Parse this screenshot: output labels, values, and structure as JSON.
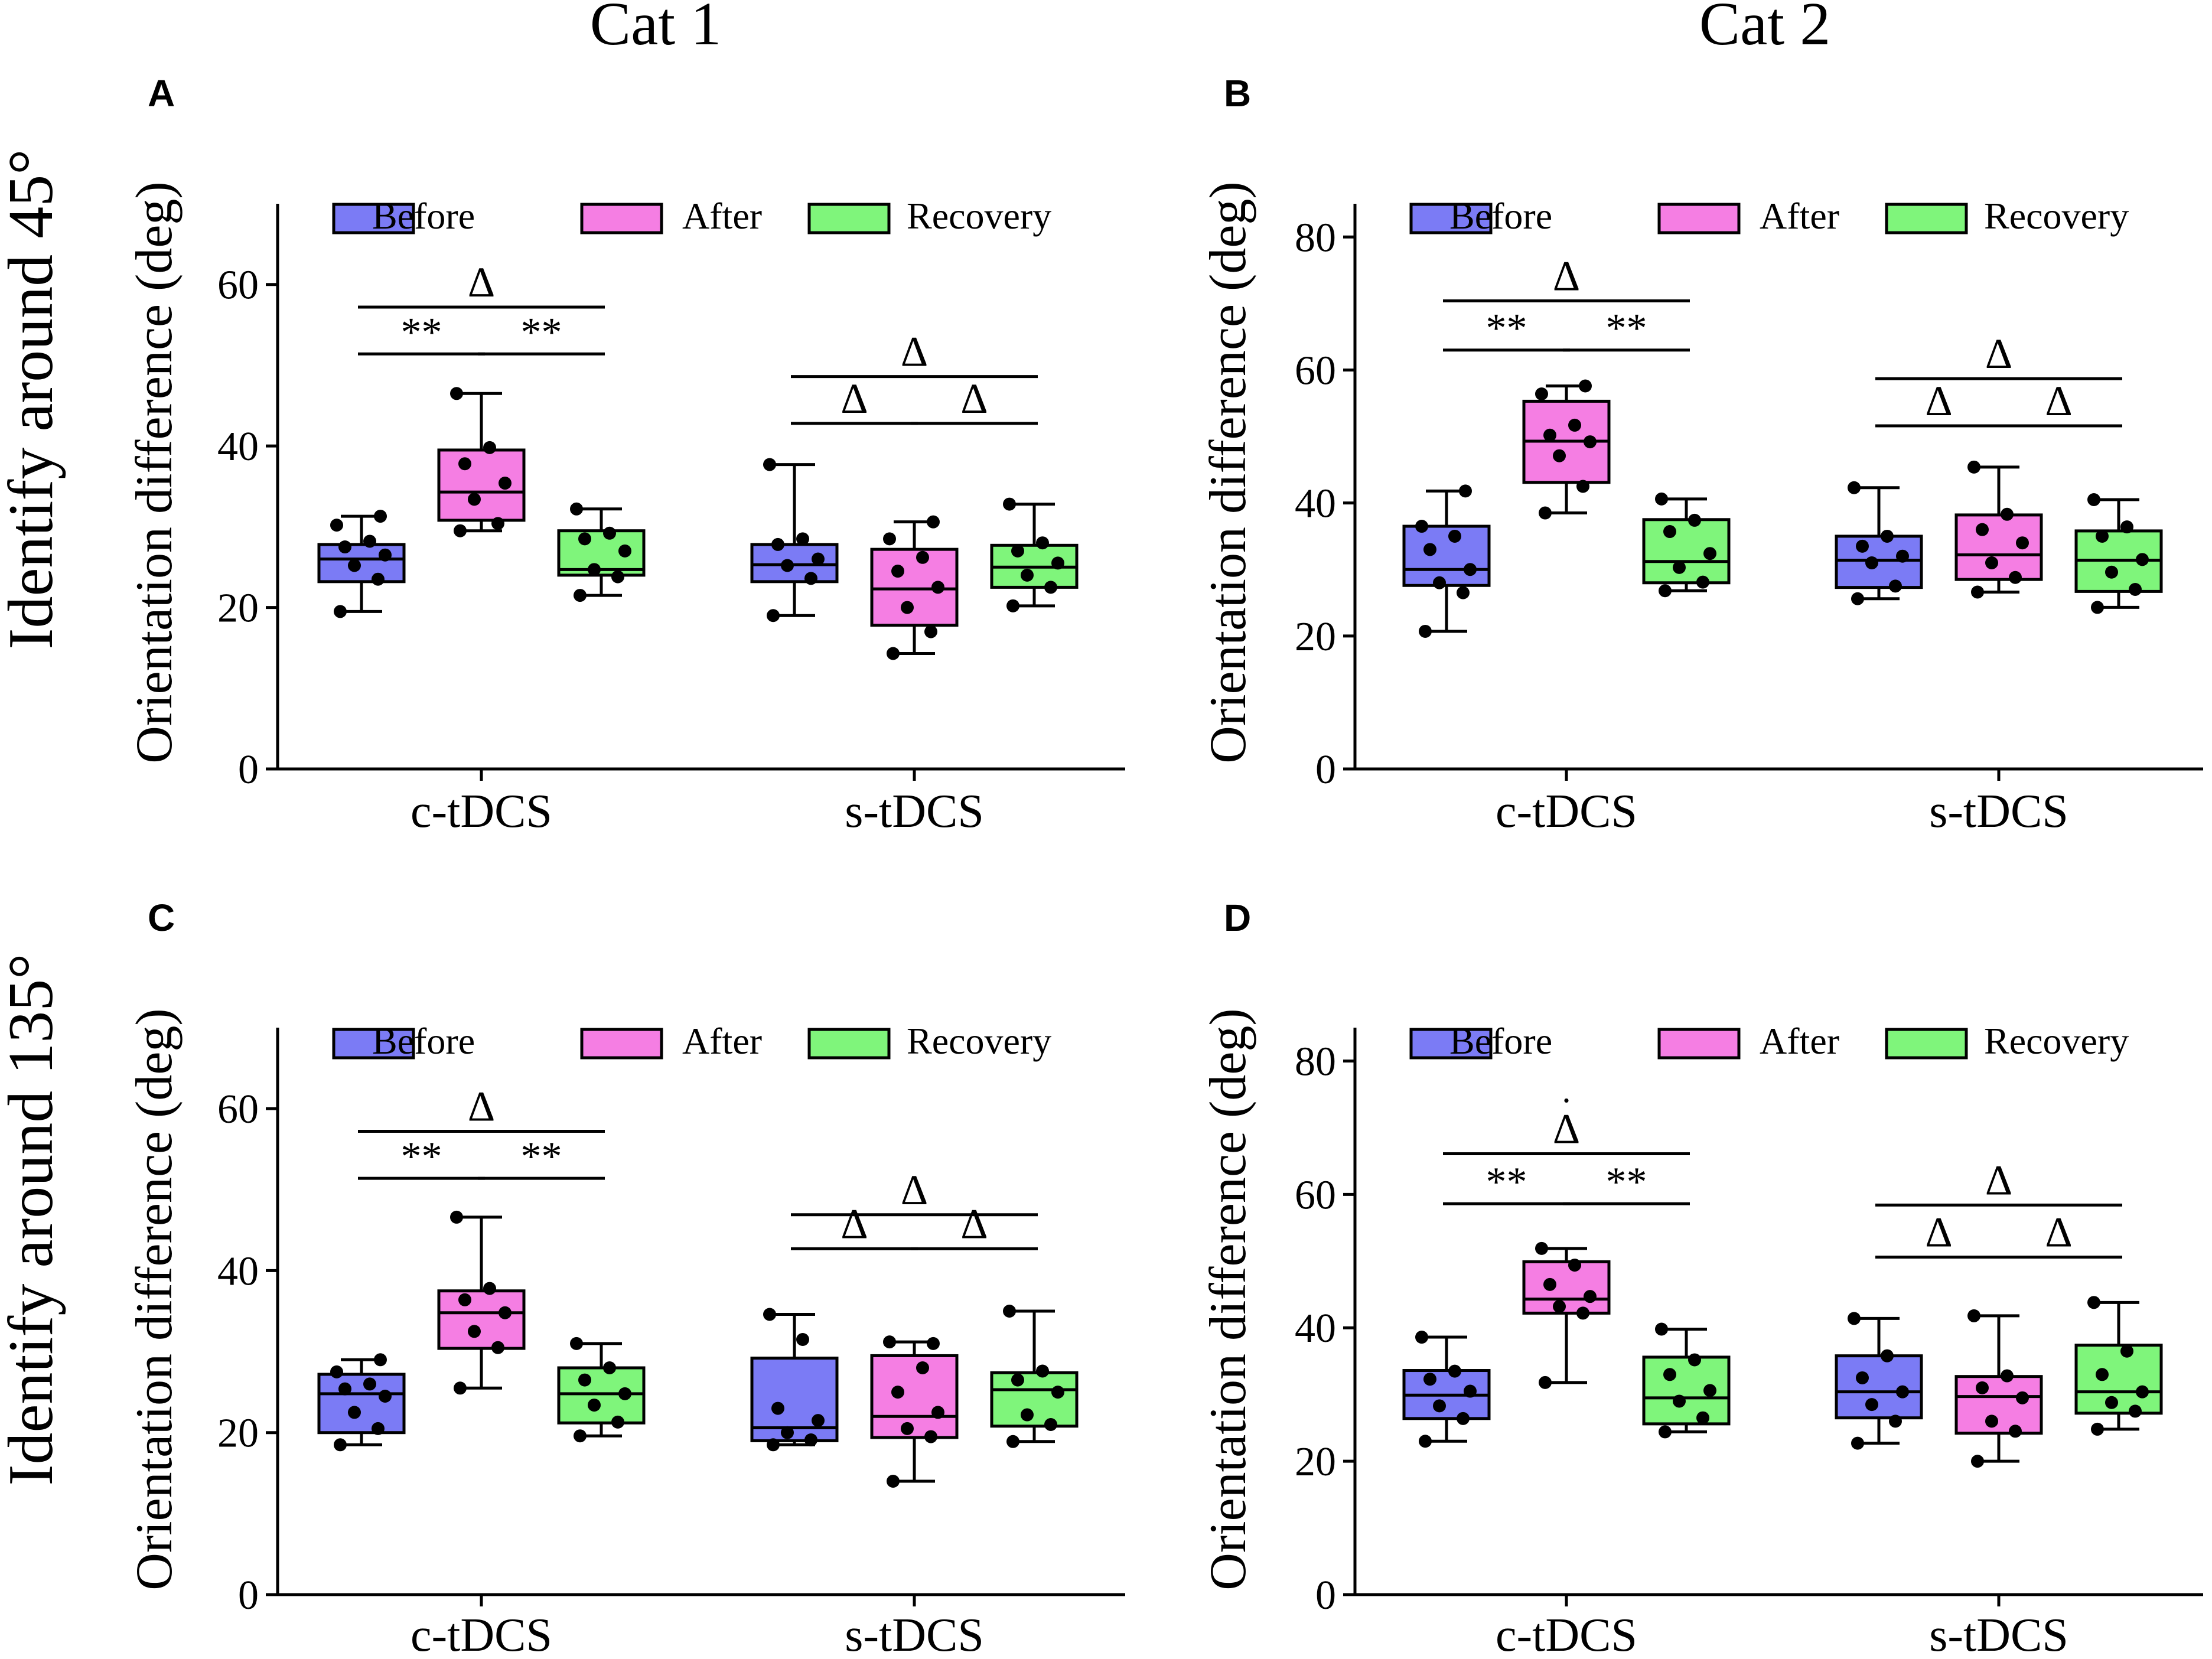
{
  "column_titles": [
    "Cat 1",
    "Cat 2"
  ],
  "row_titles": [
    "Identify around 45°",
    "Identify around 135°"
  ],
  "legend": [
    {
      "name": "Before",
      "color": "#7b7bf5"
    },
    {
      "name": "After",
      "color": "#f57ee3"
    },
    {
      "name": "Recovery",
      "color": "#7ff57b"
    }
  ],
  "significance_labels": {
    "double_star": "**",
    "delta": "Δ",
    "dot": "·"
  },
  "chart_data": [
    {
      "panel": "A",
      "type": "box",
      "ylabel": "Orientation difference (deg)",
      "ylim": [
        0,
        70
      ],
      "yticks": [
        0,
        20,
        40,
        60
      ],
      "yticklabels": [
        "0",
        "20",
        "40",
        "60"
      ],
      "categories": [
        "c-tDCS",
        "s-tDCS"
      ],
      "series": [
        "Before",
        "After",
        "Recovery"
      ],
      "boxes": [
        {
          "category": "c-tDCS",
          "series": "Before",
          "min": 19.5,
          "q1": 23.2,
          "median": 26,
          "q3": 27.8,
          "max": 31.3,
          "points": [
            19.5,
            23.5,
            25.2,
            26.5,
            27.5,
            28.2,
            30.2,
            31.3
          ]
        },
        {
          "category": "c-tDCS",
          "series": "After",
          "min": 29.5,
          "q1": 30.8,
          "median": 34.3,
          "q3": 39.5,
          "max": 46.5,
          "points": [
            29.5,
            30.4,
            33.4,
            35.4,
            37.8,
            39.8,
            46.5
          ]
        },
        {
          "category": "c-tDCS",
          "series": "Recovery",
          "min": 21.5,
          "q1": 24,
          "median": 24.7,
          "q3": 29.5,
          "max": 32.2,
          "points": [
            21.5,
            23.8,
            24.7,
            27,
            28.5,
            29.2,
            32.2
          ]
        },
        {
          "category": "s-tDCS",
          "series": "Before",
          "min": 19,
          "q1": 23.2,
          "median": 25.3,
          "q3": 27.8,
          "max": 37.7,
          "points": [
            19,
            23.6,
            25.2,
            26,
            27.8,
            28.5,
            37.7
          ]
        },
        {
          "category": "s-tDCS",
          "series": "After",
          "min": 14.3,
          "q1": 17.8,
          "median": 22.3,
          "q3": 27.2,
          "max": 30.6,
          "points": [
            14.3,
            17,
            20,
            22.5,
            24.5,
            26.2,
            28.5,
            30.6
          ]
        },
        {
          "category": "s-tDCS",
          "series": "Recovery",
          "min": 20.2,
          "q1": 22.5,
          "median": 25,
          "q3": 27.7,
          "max": 32.8,
          "points": [
            20.2,
            22.5,
            24,
            25.5,
            27,
            28,
            32.8
          ]
        }
      ],
      "brackets": [
        {
          "category": "c-tDCS",
          "from": "Before",
          "to": "After",
          "label": "**",
          "level": 51.4
        },
        {
          "category": "c-tDCS",
          "from": "After",
          "to": "Recovery",
          "label": "**",
          "level": 51.4
        },
        {
          "category": "c-tDCS",
          "from": "Before",
          "to": "Recovery",
          "label": "Δ",
          "level": 57.2
        },
        {
          "category": "s-tDCS",
          "from": "Before",
          "to": "After",
          "label": "Δ",
          "level": 42.8
        },
        {
          "category": "s-tDCS",
          "from": "After",
          "to": "Recovery",
          "label": "Δ",
          "level": 42.8
        },
        {
          "category": "s-tDCS",
          "from": "Before",
          "to": "Recovery",
          "label": "Δ",
          "level": 48.6
        }
      ]
    },
    {
      "panel": "B",
      "type": "box",
      "ylabel": "Orientation difference (deg)",
      "ylim": [
        0,
        85
      ],
      "yticks": [
        0,
        20,
        40,
        60,
        80
      ],
      "yticklabels": [
        "0",
        "20",
        "40",
        "60",
        "80"
      ],
      "categories": [
        "c-tDCS",
        "s-tDCS"
      ],
      "series": [
        "Before",
        "After",
        "Recovery"
      ],
      "boxes": [
        {
          "category": "c-tDCS",
          "series": "Before",
          "min": 20.7,
          "q1": 27.6,
          "median": 30,
          "q3": 36.5,
          "max": 41.8,
          "points": [
            20.7,
            26.5,
            28,
            30,
            33,
            35,
            36.5,
            41.8
          ]
        },
        {
          "category": "c-tDCS",
          "series": "After",
          "min": 38.5,
          "q1": 43.1,
          "median": 49.3,
          "q3": 55.3,
          "max": 57.6,
          "points": [
            38.5,
            42.5,
            47.1,
            49.2,
            50.2,
            51.7,
            56.4,
            57.6
          ]
        },
        {
          "category": "c-tDCS",
          "series": "Recovery",
          "min": 26.8,
          "q1": 28,
          "median": 31.2,
          "q3": 37.5,
          "max": 40.6,
          "points": [
            26.8,
            28.1,
            30.3,
            32.4,
            35.7,
            37.4,
            40.6
          ]
        },
        {
          "category": "s-tDCS",
          "series": "Before",
          "min": 25.6,
          "q1": 27.3,
          "median": 31.4,
          "q3": 35,
          "max": 42.3,
          "points": [
            25.6,
            27.5,
            31,
            32,
            33.5,
            35,
            42.3
          ]
        },
        {
          "category": "s-tDCS",
          "series": "After",
          "min": 26.6,
          "q1": 28.5,
          "median": 32.2,
          "q3": 38.2,
          "max": 45.4,
          "points": [
            26.6,
            28.8,
            31,
            34,
            36,
            38.3,
            45.4
          ]
        },
        {
          "category": "s-tDCS",
          "series": "Recovery",
          "min": 24.3,
          "q1": 26.7,
          "median": 31.4,
          "q3": 35.8,
          "max": 40.5,
          "points": [
            24.3,
            27,
            29.6,
            31.5,
            35,
            36.4,
            40.5
          ]
        }
      ],
      "brackets": [
        {
          "category": "c-tDCS",
          "from": "Before",
          "to": "After",
          "label": "**",
          "level": 63
        },
        {
          "category": "c-tDCS",
          "from": "After",
          "to": "Recovery",
          "label": "**",
          "level": 63
        },
        {
          "category": "c-tDCS",
          "from": "Before",
          "to": "Recovery",
          "label": "Δ",
          "level": 70.4
        },
        {
          "category": "s-tDCS",
          "from": "Before",
          "to": "After",
          "label": "Δ",
          "level": 51.6
        },
        {
          "category": "s-tDCS",
          "from": "After",
          "to": "Recovery",
          "label": "Δ",
          "level": 51.6
        },
        {
          "category": "s-tDCS",
          "from": "Before",
          "to": "Recovery",
          "label": "Δ",
          "level": 58.7
        }
      ]
    },
    {
      "panel": "C",
      "type": "box",
      "ylabel": "Orientation difference (deg)",
      "ylim": [
        0,
        70
      ],
      "yticks": [
        0,
        20,
        40,
        60
      ],
      "yticklabels": [
        "0",
        "20",
        "40",
        "60"
      ],
      "categories": [
        "c-tDCS",
        "s-tDCS"
      ],
      "series": [
        "Before",
        "After",
        "Recovery"
      ],
      "boxes": [
        {
          "category": "c-tDCS",
          "series": "Before",
          "min": 18.5,
          "q1": 20,
          "median": 24.8,
          "q3": 27.2,
          "max": 29,
          "points": [
            18.5,
            20.5,
            22.5,
            24.5,
            25.4,
            26,
            27.5,
            29
          ]
        },
        {
          "category": "c-tDCS",
          "series": "After",
          "min": 25.5,
          "q1": 30.4,
          "median": 34.8,
          "q3": 37.5,
          "max": 46.6,
          "points": [
            25.5,
            30.5,
            32.5,
            34.8,
            36.4,
            37.8,
            46.6
          ]
        },
        {
          "category": "c-tDCS",
          "series": "Recovery",
          "min": 19.6,
          "q1": 21.2,
          "median": 24.8,
          "q3": 28,
          "max": 31,
          "points": [
            19.6,
            21.3,
            23.4,
            24.8,
            26.5,
            28,
            31
          ]
        },
        {
          "category": "s-tDCS",
          "series": "Before",
          "min": 18.5,
          "q1": 19,
          "median": 20.6,
          "q3": 29.2,
          "max": 34.6,
          "points": [
            18.5,
            19.1,
            20,
            21.5,
            23,
            31.5,
            34.6
          ]
        },
        {
          "category": "s-tDCS",
          "series": "After",
          "min": 14,
          "q1": 19.4,
          "median": 22,
          "q3": 29.5,
          "max": 31.2,
          "points": [
            14,
            19.5,
            20.5,
            22.5,
            25,
            28,
            31.2,
            31
          ]
        },
        {
          "category": "s-tDCS",
          "series": "Recovery",
          "min": 18.9,
          "q1": 20.8,
          "median": 25.3,
          "q3": 27.4,
          "max": 35,
          "points": [
            18.9,
            21,
            22.2,
            25,
            26.5,
            27.6,
            35
          ]
        }
      ],
      "brackets": [
        {
          "category": "c-tDCS",
          "from": "Before",
          "to": "After",
          "label": "**",
          "level": 51.4
        },
        {
          "category": "c-tDCS",
          "from": "After",
          "to": "Recovery",
          "label": "**",
          "level": 51.4
        },
        {
          "category": "c-tDCS",
          "from": "Before",
          "to": "Recovery",
          "label": "Δ",
          "level": 57.2
        },
        {
          "category": "s-tDCS",
          "from": "Before",
          "to": "After",
          "label": "Δ",
          "level": 42.7
        },
        {
          "category": "s-tDCS",
          "from": "After",
          "to": "Recovery",
          "label": "Δ",
          "level": 42.7
        },
        {
          "category": "s-tDCS",
          "from": "Before",
          "to": "Recovery",
          "label": "Δ",
          "level": 46.9
        }
      ]
    },
    {
      "panel": "D",
      "type": "box",
      "ylabel": "Orientation difference (deg)",
      "ylim": [
        0,
        85
      ],
      "yticks": [
        0,
        20,
        40,
        60,
        80
      ],
      "yticklabels": [
        "0",
        "20",
        "40",
        "60",
        "80"
      ],
      "categories": [
        "c-tDCS",
        "s-tDCS"
      ],
      "series": [
        "Before",
        "After",
        "Recovery"
      ],
      "boxes": [
        {
          "category": "c-tDCS",
          "series": "Before",
          "min": 23,
          "q1": 26.4,
          "median": 29.9,
          "q3": 33.6,
          "max": 38.6,
          "points": [
            23,
            26.4,
            28.3,
            30.5,
            32.3,
            33.5,
            38.6
          ]
        },
        {
          "category": "c-tDCS",
          "series": "After",
          "min": 31.8,
          "q1": 42.2,
          "median": 44.3,
          "q3": 49.9,
          "max": 51.9,
          "points": [
            31.8,
            42.2,
            43.2,
            44.7,
            46.5,
            49.4,
            51.9
          ]
        },
        {
          "category": "c-tDCS",
          "series": "Recovery",
          "min": 24.4,
          "q1": 25.6,
          "median": 29.5,
          "q3": 35.6,
          "max": 39.8,
          "points": [
            24.4,
            26.5,
            29,
            30.6,
            33,
            35.2,
            39.8
          ]
        },
        {
          "category": "s-tDCS",
          "series": "Before",
          "min": 22.7,
          "q1": 26.5,
          "median": 30.4,
          "q3": 35.8,
          "max": 41.4,
          "points": [
            22.7,
            26,
            28.5,
            30.4,
            32.5,
            35.8,
            41.4
          ]
        },
        {
          "category": "s-tDCS",
          "series": "After",
          "min": 20,
          "q1": 24.2,
          "median": 29.7,
          "q3": 32.7,
          "max": 41.8,
          "points": [
            20,
            24.5,
            26,
            29.5,
            31,
            32.8,
            41.8
          ]
        },
        {
          "category": "s-tDCS",
          "series": "Recovery",
          "min": 24.8,
          "q1": 27.2,
          "median": 30.4,
          "q3": 37.4,
          "max": 43.8,
          "points": [
            24.8,
            27.5,
            28.8,
            30.4,
            33,
            36.5,
            43.8
          ]
        }
      ],
      "brackets": [
        {
          "category": "c-tDCS",
          "from": "Before",
          "to": "After",
          "label": "**",
          "level": 58.6
        },
        {
          "category": "c-tDCS",
          "from": "After",
          "to": "Recovery",
          "label": "**",
          "level": 58.6
        },
        {
          "category": "c-tDCS",
          "from": "Before",
          "to": "Recovery",
          "label": "Δ",
          "level": 66.1
        },
        {
          "category": "s-tDCS",
          "from": "Before",
          "to": "After",
          "label": "Δ",
          "level": 50.6
        },
        {
          "category": "s-tDCS",
          "from": "After",
          "to": "Recovery",
          "label": "Δ",
          "level": 50.6
        },
        {
          "category": "s-tDCS",
          "from": "Before",
          "to": "Recovery",
          "label": "Δ",
          "level": 58.4
        }
      ]
    }
  ]
}
